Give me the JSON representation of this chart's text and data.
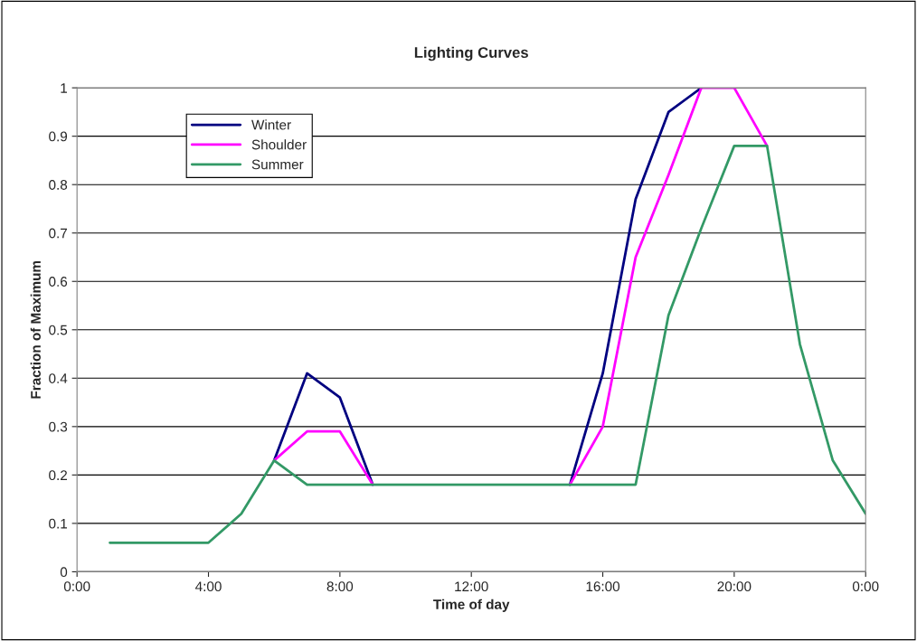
{
  "chart_data": {
    "type": "line",
    "title": "Lighting Curves",
    "xlabel": "Time of day",
    "ylabel": "Fraction of Maximum",
    "x": [
      1,
      2,
      3,
      4,
      5,
      6,
      7,
      8,
      9,
      10,
      11,
      12,
      13,
      14,
      15,
      16,
      17,
      18,
      19,
      20,
      21,
      22,
      23,
      24
    ],
    "series": [
      {
        "name": "Winter",
        "color": "#000080",
        "values": [
          null,
          null,
          null,
          null,
          null,
          0.23,
          0.41,
          0.36,
          0.18,
          null,
          null,
          null,
          null,
          null,
          0.18,
          0.41,
          0.77,
          0.95,
          1.0,
          null,
          null,
          null,
          null,
          null
        ]
      },
      {
        "name": "Shoulder",
        "color": "#ff00ff",
        "values": [
          null,
          null,
          null,
          null,
          null,
          0.23,
          0.29,
          0.29,
          0.18,
          null,
          null,
          null,
          null,
          null,
          0.18,
          0.3,
          0.65,
          0.82,
          1.0,
          1.0,
          0.88,
          null,
          null,
          null
        ]
      },
      {
        "name": "Summer",
        "color": "#339966",
        "values": [
          0.06,
          0.06,
          0.06,
          0.06,
          0.12,
          0.23,
          0.18,
          0.18,
          0.18,
          0.18,
          0.18,
          0.18,
          0.18,
          0.18,
          0.18,
          0.18,
          0.18,
          0.53,
          0.71,
          0.88,
          0.88,
          0.47,
          0.23,
          0.12
        ]
      }
    ],
    "xlim": [
      0,
      24
    ],
    "xticks": [
      {
        "value": 0,
        "label": "0:00"
      },
      {
        "value": 4,
        "label": "4:00"
      },
      {
        "value": 8,
        "label": "8:00"
      },
      {
        "value": 12,
        "label": "12:00"
      },
      {
        "value": 16,
        "label": "16:00"
      },
      {
        "value": 20,
        "label": "20:00"
      },
      {
        "value": 24,
        "label": "0:00"
      }
    ],
    "ylim": [
      0,
      1
    ],
    "yticks": [
      0,
      0.1,
      0.2,
      0.3,
      0.4,
      0.5,
      0.6,
      0.7,
      0.8,
      0.9,
      1
    ],
    "grid": "y",
    "legend": "top left",
    "marker": "none",
    "line_style": "solid"
  }
}
